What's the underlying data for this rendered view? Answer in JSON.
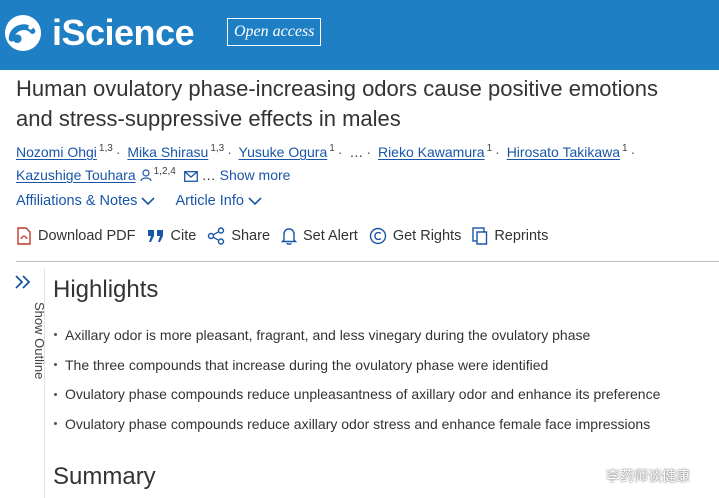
{
  "header": {
    "brand": "iScience",
    "badge": "Open access",
    "brand_color": "#1f7fc4"
  },
  "article": {
    "title_line1": "Human ovulatory phase-increasing odors cause positive emotions",
    "title_line2": "and stress-suppressive effects in males"
  },
  "authors": [
    {
      "name": "Nozomi Ohgi",
      "aff": "1,3"
    },
    {
      "name": "Mika Shirasu",
      "aff": "1,3"
    },
    {
      "name": "Yusuke Ogura",
      "aff": "1"
    },
    {
      "name": "Rieko Kawamura",
      "aff": "1"
    },
    {
      "name": "Hirosato Takikawa",
      "aff": "1"
    },
    {
      "name": "Kazushige Touhara",
      "aff": "1,2,4"
    }
  ],
  "authors_ellipsis": "…",
  "show_more": "Show more",
  "info": {
    "affiliations": "Affiliations & Notes",
    "article_info": "Article Info"
  },
  "actions": {
    "download_pdf": "Download PDF",
    "cite": "Cite",
    "share": "Share",
    "set_alert": "Set Alert",
    "get_rights": "Get Rights",
    "reprints": "Reprints"
  },
  "outline": {
    "label": "Show Outline"
  },
  "highlights": {
    "title": "Highlights",
    "items": [
      "Axillary odor is more pleasant, fragrant, and less vinegary during the ovulatory phase",
      "The three compounds that increase during the ovulatory phase were identified",
      "Ovulatory phase compounds reduce unpleasantness of axillary odor and enhance its preference",
      "Ovulatory phase compounds reduce axillary odor stress and enhance female face impressions"
    ]
  },
  "summary": {
    "title": "Summary"
  },
  "watermark": "李药师谈健康"
}
